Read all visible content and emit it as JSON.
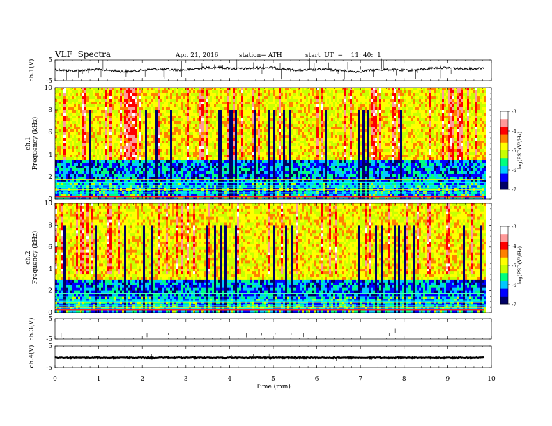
{
  "header": {
    "title": "VLF  Spectra",
    "date": "Apr. 21, 2016",
    "station": "station= ATH",
    "start": "start  UT  =    11: 40:  1"
  },
  "chart_data": [
    {
      "type": "line",
      "panel": "ch1-waveform",
      "ylabel": "ch.1(V)",
      "ylim": [
        -5,
        5
      ],
      "yticks": [
        "5",
        "-5"
      ],
      "baseline": 0.5
    },
    {
      "type": "heatmap",
      "panel": "ch1-spectrogram",
      "ylabel": "Frequency (kHz)",
      "ylabel2": "ch.1",
      "ylim": [
        0,
        10
      ],
      "yticks": [
        "0",
        "2",
        "4",
        "6",
        "8",
        "10"
      ],
      "colorbar": {
        "label": "log(PSD(V²/Hz)",
        "range": [
          -7,
          -3
        ],
        "ticks": [
          "-3",
          "-4",
          "-5",
          "-6",
          "-7"
        ],
        "colors": [
          "#000066",
          "#0000ff",
          "#00c8ff",
          "#00ff80",
          "#c8ff00",
          "#ffff00",
          "#ff8000",
          "#ff0000",
          "#ff9999",
          "#ffffff"
        ]
      }
    },
    {
      "type": "heatmap",
      "panel": "ch2-spectrogram",
      "ylabel": "Frequency (kHz)",
      "ylabel2": "ch.2",
      "ylim": [
        0,
        10
      ],
      "yticks": [
        "0",
        "2",
        "4",
        "6",
        "8",
        "10"
      ],
      "colorbar": {
        "label": "log(PSD(V²/Hz)",
        "range": [
          -7,
          -3
        ],
        "ticks": [
          "-3",
          "-4",
          "-5",
          "-6",
          "-7"
        ]
      }
    },
    {
      "type": "line",
      "panel": "ch3-waveform",
      "ylabel": "ch.3(V)",
      "ylim": [
        -5,
        5
      ],
      "yticks": [
        "5",
        "-5"
      ],
      "baseline": -2
    },
    {
      "type": "line",
      "panel": "ch4-waveform",
      "ylabel": "ch.4(V)",
      "ylim": [
        -5,
        5
      ],
      "yticks": [
        "5",
        "-5"
      ],
      "baseline": -0.5
    }
  ],
  "xaxis": {
    "label": "Time  (min)",
    "range": [
      0,
      10
    ],
    "ticks": [
      "0",
      "1",
      "2",
      "3",
      "4",
      "5",
      "6",
      "7",
      "8",
      "9",
      "10"
    ],
    "data_end": 9.83
  }
}
